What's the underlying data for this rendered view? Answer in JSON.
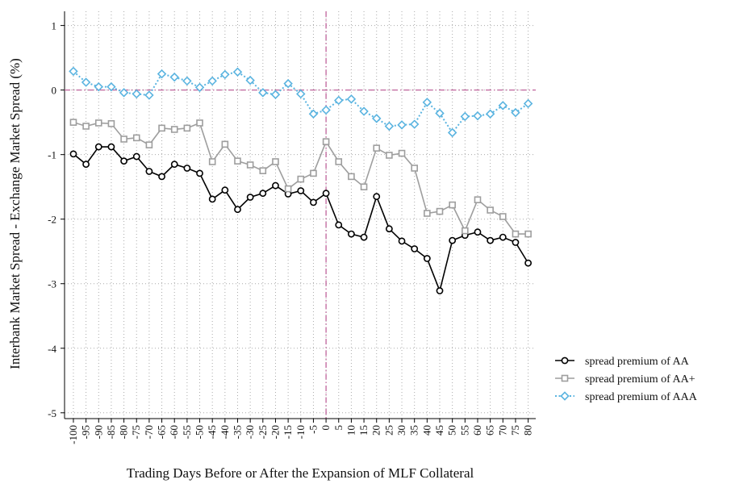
{
  "chart_data": {
    "type": "line",
    "x_label": "Trading Days Before or After the Expansion of MLF Collateral",
    "y_label": "Interbank Market Spread - Exchange Market Spread (%)",
    "x": [
      -100,
      -95,
      -90,
      -85,
      -80,
      -75,
      -70,
      -65,
      -60,
      -55,
      -50,
      -45,
      -40,
      -35,
      -30,
      -25,
      -20,
      -15,
      -10,
      -5,
      0,
      5,
      10,
      15,
      20,
      25,
      30,
      35,
      40,
      45,
      50,
      55,
      60,
      65,
      70,
      75,
      80
    ],
    "series": [
      {
        "name": "spread premium of AA",
        "color": "#000000",
        "marker": "circle",
        "dash": "solid",
        "values": [
          -0.99,
          -1.15,
          -0.88,
          -0.88,
          -1.1,
          -1.03,
          -1.26,
          -1.34,
          -1.15,
          -1.21,
          -1.29,
          -1.69,
          -1.55,
          -1.85,
          -1.66,
          -1.6,
          -1.48,
          -1.61,
          -1.56,
          -1.74,
          -1.6,
          -2.09,
          -2.23,
          -2.28,
          -1.65,
          -2.15,
          -2.34,
          -2.46,
          -2.61,
          -3.11,
          -2.33,
          -2.25,
          -2.2,
          -2.33,
          -2.28,
          -2.36,
          -2.68
        ]
      },
      {
        "name": "spread premium of AA+",
        "color": "#9e9e9e",
        "marker": "square",
        "dash": "solid",
        "values": [
          -0.5,
          -0.56,
          -0.51,
          -0.52,
          -0.76,
          -0.74,
          -0.85,
          -0.59,
          -0.61,
          -0.59,
          -0.51,
          -1.11,
          -0.84,
          -1.1,
          -1.16,
          -1.25,
          -1.11,
          -1.53,
          -1.38,
          -1.29,
          -0.8,
          -1.11,
          -1.34,
          -1.5,
          -0.9,
          -1.01,
          -0.98,
          -1.21,
          -1.91,
          -1.88,
          -1.78,
          -2.18,
          -1.7,
          -1.86,
          -1.96,
          -2.23,
          -2.23
        ]
      },
      {
        "name": "spread premium of AAA",
        "color": "#5bb4e0",
        "marker": "diamond",
        "dash": "dotted",
        "values": [
          0.29,
          0.12,
          0.05,
          0.05,
          -0.04,
          -0.06,
          -0.08,
          0.25,
          0.2,
          0.14,
          0.04,
          0.14,
          0.24,
          0.28,
          0.15,
          -0.04,
          -0.07,
          0.1,
          -0.06,
          -0.37,
          -0.31,
          -0.16,
          -0.14,
          -0.33,
          -0.44,
          -0.56,
          -0.54,
          -0.53,
          -0.19,
          -0.36,
          -0.66,
          -0.41,
          -0.4,
          -0.37,
          -0.24,
          -0.35,
          -0.21
        ]
      }
    ],
    "xlim": [
      -103.5,
      83
    ],
    "ylim": [
      -5.09,
      1.22
    ],
    "xticks": [
      -100,
      -95,
      -90,
      -85,
      -80,
      -75,
      -70,
      -65,
      -60,
      -55,
      -50,
      -45,
      -40,
      -35,
      -30,
      -25,
      -20,
      -15,
      -10,
      -5,
      0,
      5,
      10,
      15,
      20,
      25,
      30,
      35,
      40,
      45,
      50,
      55,
      60,
      65,
      70,
      75,
      80
    ],
    "yticks": [
      -5,
      -4,
      -3,
      -2,
      -1,
      0,
      1
    ],
    "grid": true,
    "reference_lines": {
      "x": 0,
      "y": 0,
      "color": "#c0649c"
    },
    "legend": "right"
  }
}
